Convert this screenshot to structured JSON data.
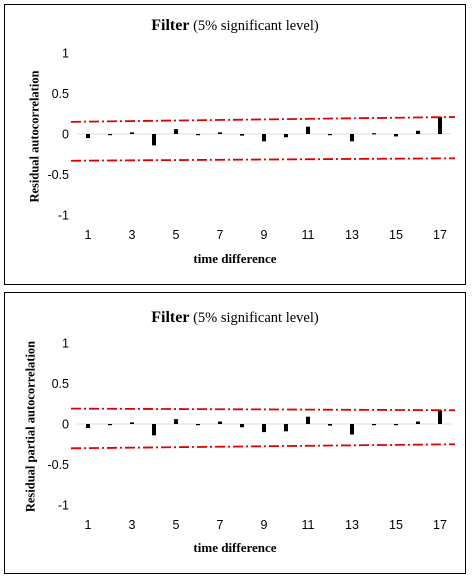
{
  "chart_data": [
    {
      "type": "bar",
      "title": "Filter",
      "subtitle": "(5% significant level)",
      "ylabel": "Residual autocorrelation",
      "xlabel": "time difference",
      "ylim": [
        -1,
        1
      ],
      "yticks": [
        1,
        0.5,
        0,
        -0.5,
        -1
      ],
      "ytick_labels": [
        "1",
        "0.5",
        "0",
        "-0.5",
        "-1"
      ],
      "xlim": [
        0.5,
        17.5
      ],
      "xtick_labels": [
        "1",
        "3",
        "5",
        "7",
        "9",
        "11",
        "13",
        "15",
        "17"
      ],
      "x": [
        1,
        2,
        3,
        4,
        5,
        6,
        7,
        8,
        9,
        10,
        11,
        12,
        13,
        14,
        15,
        16,
        17
      ],
      "values": [
        -0.05,
        0.0,
        0.02,
        -0.14,
        0.06,
        0.0,
        0.02,
        -0.02,
        -0.09,
        -0.04,
        0.09,
        -0.01,
        -0.09,
        0.01,
        -0.03,
        0.04,
        0.21
      ],
      "confidence_bounds": {
        "upper_start": 0.15,
        "upper_end": 0.21,
        "lower_start": -0.33,
        "lower_end": -0.3
      },
      "colors": {
        "bars": "#000000",
        "bounds": "#e00000"
      }
    },
    {
      "type": "bar",
      "title": "Filter",
      "subtitle": "(5% significant level)",
      "ylabel": "Residual partial autocorrelation",
      "xlabel": "time difference",
      "ylim": [
        -1,
        1
      ],
      "yticks": [
        1,
        0.5,
        0,
        -0.5,
        -1
      ],
      "ytick_labels": [
        "1",
        "0.5",
        "0",
        "-0.5",
        "-1"
      ],
      "xlim": [
        0.5,
        17.5
      ],
      "xtick_labels": [
        "1",
        "3",
        "5",
        "7",
        "9",
        "11",
        "13",
        "15",
        "17"
      ],
      "x": [
        1,
        2,
        3,
        4,
        5,
        6,
        7,
        8,
        9,
        10,
        11,
        12,
        13,
        14,
        15,
        16,
        17
      ],
      "values": [
        -0.05,
        0.0,
        0.02,
        -0.14,
        0.06,
        0.0,
        0.03,
        -0.04,
        -0.1,
        -0.09,
        0.09,
        -0.02,
        -0.13,
        0.0,
        0.0,
        0.03,
        0.17
      ],
      "confidence_bounds": {
        "upper_start": 0.19,
        "upper_end": 0.17,
        "lower_start": -0.3,
        "lower_end": -0.25
      },
      "colors": {
        "bars": "#000000",
        "bounds": "#e00000"
      }
    }
  ]
}
